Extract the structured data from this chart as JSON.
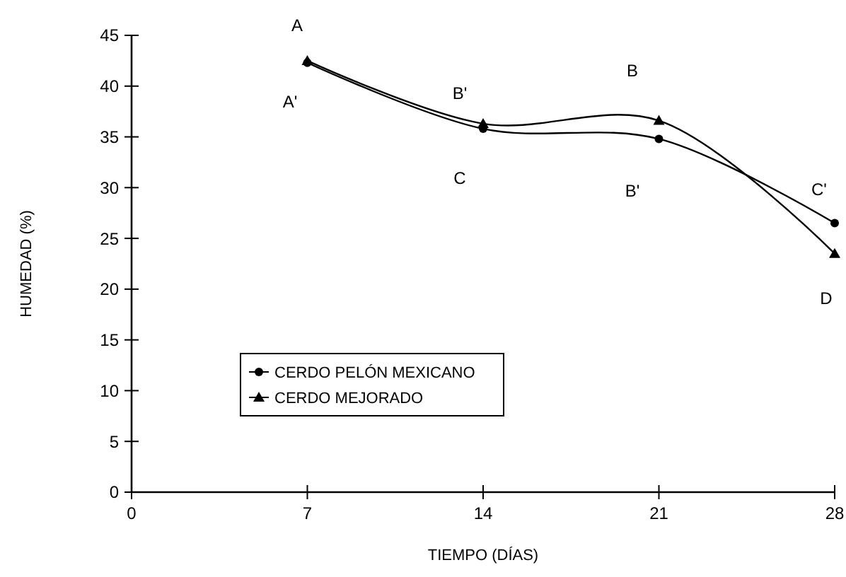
{
  "chart_data": {
    "type": "line",
    "xlabel": "TIEMPO (DÍAS)",
    "ylabel": "HUMEDAD (%)",
    "x": [
      7,
      14,
      21,
      28
    ],
    "xlim": [
      0,
      28
    ],
    "xticks": [
      0,
      7,
      14,
      21,
      28
    ],
    "ylim": [
      0,
      45
    ],
    "yticks": [
      0,
      5,
      10,
      15,
      20,
      25,
      30,
      35,
      40,
      45
    ],
    "grid": false,
    "legend": "bottom left",
    "series": [
      {
        "name": "CERDO PELÓN MEXICANO",
        "color": "#000000",
        "marker": "circle",
        "values": [
          42.3,
          35.8,
          34.8,
          26.5
        ]
      },
      {
        "name": "CERDO MEJORADO",
        "color": "#000000",
        "marker": "triangle",
        "values": [
          42.5,
          36.3,
          36.6,
          23.5
        ]
      }
    ],
    "annotations": [
      "A",
      "A'",
      "B'",
      "C",
      "B",
      "B'",
      "C'",
      "D"
    ]
  }
}
